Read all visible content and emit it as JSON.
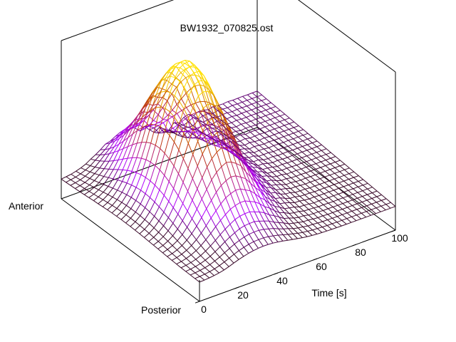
{
  "chart_data": {
    "type": "surface",
    "title": "BW1932_070825.ost",
    "xlabel": "Time [s]",
    "y_axis_end_labels": {
      "near": "Posterior",
      "far": "Anterior"
    },
    "xlim": [
      0,
      100
    ],
    "x_ticks": [
      0,
      20,
      40,
      60,
      80,
      100
    ],
    "zlim": [
      0,
      1
    ],
    "grid": false,
    "legend": "none",
    "mesh": {
      "time_samples": 41,
      "position_samples": 31,
      "baseline": 0.12,
      "peak": {
        "amplitude": 0.85,
        "time_center": 33,
        "time_width": 18,
        "position_center": 0.55,
        "position_width": 0.33
      },
      "plateau_onset_time": 58,
      "plateau_level": 0.08
    },
    "colors": {
      "low": "#3a0a2a",
      "mid": "#b000ff",
      "high_warm": "#c04000",
      "peak": "#ffe000",
      "box": "#000000"
    }
  }
}
